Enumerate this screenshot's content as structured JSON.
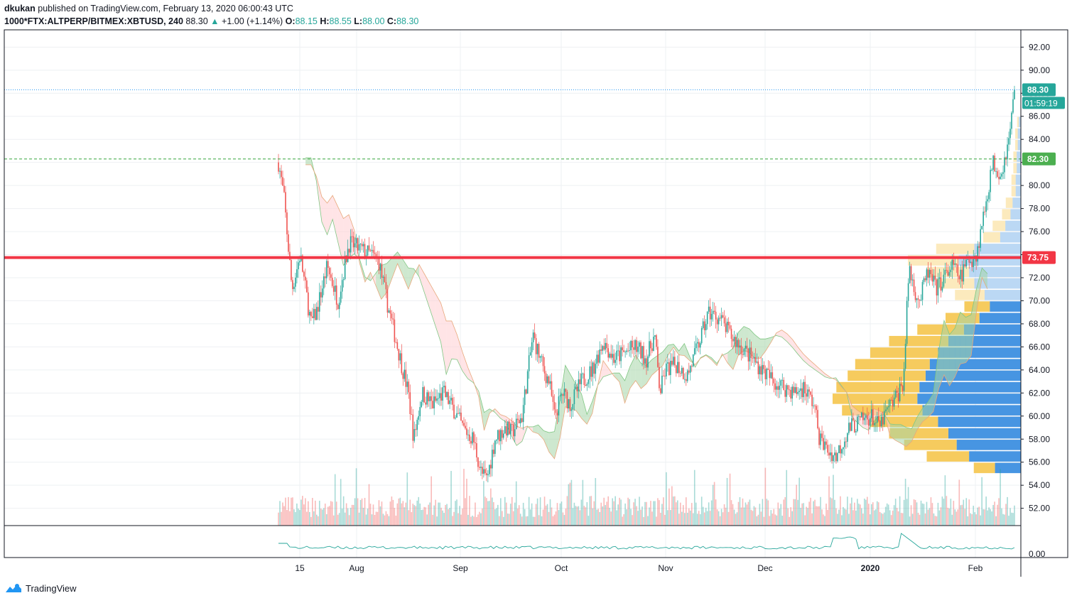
{
  "header": {
    "author": "dkukan",
    "published_text": "published on TradingView.com, February 13, 2020 06:00:43 UTC",
    "symbol": "1000*FTX:ALTPERP/BITMEX:XBTUSD, 240",
    "last": "88.30",
    "change": "+1.00 (+1.14%)",
    "o_label": "O:",
    "o_value": "88.15",
    "h_label": "H:",
    "h_value": "88.55",
    "l_label": "L:",
    "l_value": "88.00",
    "c_label": "C:",
    "c_value": "88.30"
  },
  "footer": {
    "brand": "TradingView"
  },
  "colors": {
    "up": "#26a69a",
    "down": "#ef5350",
    "resistance": "#f23645",
    "support": "#4caf50",
    "vp_blue": "#3d8fe0",
    "vp_yellow": "#f5c242",
    "cloud_green": "#a5d6a7",
    "cloud_red": "#ffcdd2",
    "osc": "#26a69a"
  },
  "chart_data": {
    "type": "candlestick",
    "symbol": "1000*FTX:ALTPERP/BITMEX:XBTUSD",
    "interval": "240",
    "y_ticks": [
      "92.00",
      "90.00",
      "88.00",
      "86.00",
      "84.00",
      "82.00",
      "80.00",
      "78.00",
      "76.00",
      "74.00",
      "72.00",
      "70.00",
      "68.00",
      "66.00",
      "64.00",
      "62.00",
      "60.00",
      "58.00",
      "56.00",
      "54.00",
      "52.00"
    ],
    "ylim": [
      50.5,
      93.5
    ],
    "x_ticks": [
      "15",
      "Aug",
      "Sep",
      "Oct",
      "Nov",
      "Dec",
      "2020",
      "Feb"
    ],
    "osc_tick": "0.00",
    "price_labels": {
      "last": "88.30",
      "countdown": "01:59:19",
      "support": "82.30",
      "resistance": "73.75"
    },
    "horizontal_lines": [
      {
        "value": 88.3,
        "style": "dotted",
        "color": "#2196f3"
      },
      {
        "value": 82.3,
        "style": "dashed",
        "color": "#4caf50"
      },
      {
        "value": 73.75,
        "style": "solid",
        "color": "#f23645"
      }
    ],
    "close_path": [
      {
        "x": 0,
        "y": 82.0
      },
      {
        "x": 2,
        "y": 79.0
      },
      {
        "x": 5,
        "y": 71.0
      },
      {
        "x": 8,
        "y": 74.0
      },
      {
        "x": 12,
        "y": 68.0
      },
      {
        "x": 14,
        "y": 69.0
      },
      {
        "x": 18,
        "y": 73.0
      },
      {
        "x": 22,
        "y": 70.0
      },
      {
        "x": 26,
        "y": 75.0
      },
      {
        "x": 30,
        "y": 74.5
      },
      {
        "x": 34,
        "y": 74.0
      },
      {
        "x": 37,
        "y": 73.5
      },
      {
        "x": 40,
        "y": 70.0
      },
      {
        "x": 44,
        "y": 66.0
      },
      {
        "x": 48,
        "y": 62.0
      },
      {
        "x": 50,
        "y": 58.0
      },
      {
        "x": 53,
        "y": 62.0
      },
      {
        "x": 57,
        "y": 61.0
      },
      {
        "x": 61,
        "y": 62.0
      },
      {
        "x": 65,
        "y": 60.5
      },
      {
        "x": 68,
        "y": 59.0
      },
      {
        "x": 72,
        "y": 58.0
      },
      {
        "x": 75,
        "y": 55.0
      },
      {
        "x": 77,
        "y": 54.5
      },
      {
        "x": 80,
        "y": 58.0
      },
      {
        "x": 84,
        "y": 59.0
      },
      {
        "x": 86,
        "y": 58.5
      },
      {
        "x": 90,
        "y": 60.0
      },
      {
        "x": 94,
        "y": 67.0
      },
      {
        "x": 98,
        "y": 64.0
      },
      {
        "x": 100,
        "y": 63.0
      },
      {
        "x": 102,
        "y": 60.0
      },
      {
        "x": 105,
        "y": 62.0
      },
      {
        "x": 108,
        "y": 61.0
      },
      {
        "x": 112,
        "y": 63.0
      },
      {
        "x": 116,
        "y": 64.0
      },
      {
        "x": 120,
        "y": 66.5
      },
      {
        "x": 124,
        "y": 65.0
      },
      {
        "x": 128,
        "y": 65.5
      },
      {
        "x": 132,
        "y": 66.0
      },
      {
        "x": 136,
        "y": 65.0
      },
      {
        "x": 139,
        "y": 67.0
      },
      {
        "x": 141,
        "y": 62.0
      },
      {
        "x": 143,
        "y": 64.0
      },
      {
        "x": 147,
        "y": 64.5
      },
      {
        "x": 151,
        "y": 63.5
      },
      {
        "x": 155,
        "y": 66.0
      },
      {
        "x": 159,
        "y": 69.0
      },
      {
        "x": 163,
        "y": 68.5
      },
      {
        "x": 167,
        "y": 67.0
      },
      {
        "x": 171,
        "y": 66.0
      },
      {
        "x": 175,
        "y": 65.0
      },
      {
        "x": 179,
        "y": 64.0
      },
      {
        "x": 183,
        "y": 63.0
      },
      {
        "x": 187,
        "y": 62.5
      },
      {
        "x": 191,
        "y": 62.0
      },
      {
        "x": 194,
        "y": 62.5
      },
      {
        "x": 198,
        "y": 61.0
      },
      {
        "x": 200,
        "y": 58.0
      },
      {
        "x": 203,
        "y": 57.0
      },
      {
        "x": 206,
        "y": 56.5
      },
      {
        "x": 208,
        "y": 57.5
      },
      {
        "x": 211,
        "y": 59.0
      },
      {
        "x": 215,
        "y": 59.5
      },
      {
        "x": 219,
        "y": 60.0
      },
      {
        "x": 222,
        "y": 59.0
      },
      {
        "x": 225,
        "y": 60.5
      },
      {
        "x": 228,
        "y": 61.5
      },
      {
        "x": 231,
        "y": 63.0
      },
      {
        "x": 233,
        "y": 73.0
      },
      {
        "x": 235,
        "y": 71.0
      },
      {
        "x": 237,
        "y": 70.0
      },
      {
        "x": 240,
        "y": 72.5
      },
      {
        "x": 243,
        "y": 71.0
      },
      {
        "x": 246,
        "y": 72.0
      },
      {
        "x": 249,
        "y": 73.0
      },
      {
        "x": 252,
        "y": 72.0
      },
      {
        "x": 255,
        "y": 73.5
      },
      {
        "x": 258,
        "y": 74.0
      },
      {
        "x": 261,
        "y": 78.0
      },
      {
        "x": 264,
        "y": 82.0
      },
      {
        "x": 267,
        "y": 81.0
      },
      {
        "x": 270,
        "y": 84.0
      },
      {
        "x": 272,
        "y": 88.3
      }
    ],
    "volume_profile_levels": [
      55.5,
      56.5,
      57.5,
      58.5,
      59.5,
      60.5,
      61.5,
      62.5,
      63.5,
      64.5,
      65.5,
      66.5,
      67.5,
      68.5,
      69.5,
      70.5,
      71.5,
      72.5,
      73.5,
      74.5,
      75.5,
      76.5,
      77.5,
      78.5,
      79.5,
      80.5,
      81.5,
      82.5,
      83.5,
      84.5,
      85.5
    ],
    "volume_profile_values": [
      0.25,
      0.5,
      0.62,
      0.7,
      0.8,
      0.95,
      1.0,
      0.98,
      0.92,
      0.88,
      0.8,
      0.7,
      0.55,
      0.4,
      0.3,
      0.35,
      0.45,
      0.5,
      0.6,
      0.45,
      0.2,
      0.15,
      0.1,
      0.08,
      0.05,
      0.05,
      0.04,
      0.04,
      0.03,
      0.03,
      0.02
    ]
  }
}
